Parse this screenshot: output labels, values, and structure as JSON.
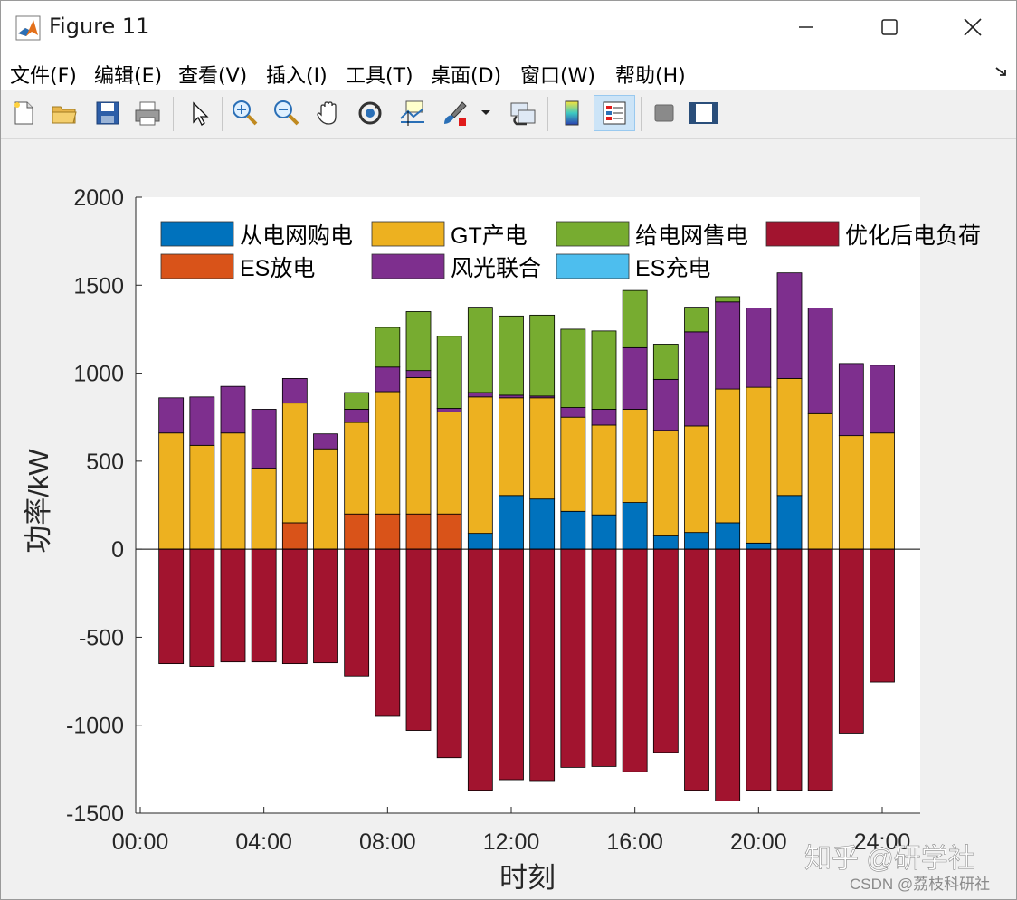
{
  "window": {
    "title": "Figure 11",
    "controls": {
      "minimize": "minimize",
      "maximize": "maximize",
      "close": "close"
    }
  },
  "menu": [
    "文件(F)",
    "编辑(E)",
    "查看(V)",
    "插入(I)",
    "工具(T)",
    "桌面(D)",
    "窗口(W)",
    "帮助(H)"
  ],
  "toolbar": {
    "buttons": [
      "new-figure-icon",
      "open-folder-icon",
      "save-icon",
      "print-icon",
      "pointer-icon",
      "zoom-in-icon",
      "zoom-out-icon",
      "pan-hand-icon",
      "rotate-3d-icon",
      "data-cursor-icon",
      "brush-icon",
      "link-plot-icon",
      "colorbar-icon",
      "legend-icon",
      "hide-plot-tools-icon",
      "show-plot-tools-icon"
    ],
    "active": "legend-icon"
  },
  "watermark": {
    "zhihu": "知乎 @研学社",
    "csdn": "CSDN @荔枝科研社"
  },
  "chart_data": {
    "type": "bar",
    "stacked": true,
    "xlabel": "时刻",
    "ylabel": "功率/kW",
    "ylim": [
      -1500,
      2000
    ],
    "yticks": [
      "-1500",
      "-1000",
      "-500",
      "0",
      "500",
      "1000",
      "1500",
      "2000"
    ],
    "xticks": [
      "00:00",
      "04:00",
      "08:00",
      "12:00",
      "16:00",
      "20:00",
      "24:00"
    ],
    "legend_position": "top",
    "categories": [
      1,
      2,
      3,
      4,
      5,
      6,
      7,
      8,
      9,
      10,
      11,
      12,
      13,
      14,
      15,
      16,
      17,
      18,
      19,
      20,
      21,
      22,
      23,
      24
    ],
    "series": [
      {
        "name": "从电网购电",
        "color": "#0072BD",
        "values": [
          0,
          0,
          0,
          0,
          0,
          0,
          0,
          0,
          0,
          0,
          90,
          305,
          285,
          215,
          195,
          265,
          75,
          95,
          150,
          35,
          305,
          0,
          0,
          0
        ]
      },
      {
        "name": "ES放电",
        "color": "#D95319",
        "values": [
          0,
          0,
          0,
          0,
          150,
          0,
          200,
          200,
          200,
          200,
          0,
          0,
          0,
          0,
          0,
          0,
          0,
          0,
          0,
          0,
          0,
          0,
          0,
          0
        ]
      },
      {
        "name": "GT产电",
        "color": "#EDB120",
        "values": [
          660,
          590,
          660,
          460,
          680,
          570,
          520,
          695,
          775,
          580,
          775,
          555,
          575,
          535,
          510,
          530,
          600,
          605,
          760,
          885,
          665,
          770,
          645,
          660
        ]
      },
      {
        "name": "风光联合",
        "color": "#7E2F8E",
        "values": [
          200,
          275,
          265,
          335,
          140,
          85,
          75,
          140,
          40,
          20,
          25,
          15,
          10,
          55,
          90,
          350,
          290,
          535,
          495,
          450,
          600,
          600,
          410,
          385
        ]
      },
      {
        "name": "给电网售电",
        "color": "#77AC30",
        "values": [
          0,
          0,
          0,
          0,
          0,
          0,
          95,
          225,
          335,
          410,
          485,
          450,
          460,
          445,
          445,
          325,
          200,
          140,
          30,
          0,
          0,
          0,
          0,
          0
        ]
      },
      {
        "name": "优化后电负荷",
        "color": "#A2142F",
        "values": [
          -650,
          -665,
          -640,
          -640,
          -650,
          -645,
          -720,
          -950,
          -1030,
          -1185,
          -1370,
          -1310,
          -1315,
          -1240,
          -1235,
          -1265,
          -1155,
          -1370,
          -1430,
          -1370,
          -1370,
          -1370,
          -1045,
          -755
        ]
      },
      {
        "name": "ES充电",
        "color": "#4DBEEE",
        "values": [
          0,
          0,
          0,
          0,
          0,
          0,
          0,
          0,
          0,
          0,
          0,
          0,
          0,
          0,
          0,
          0,
          0,
          0,
          0,
          0,
          0,
          0,
          0,
          0
        ]
      }
    ]
  }
}
